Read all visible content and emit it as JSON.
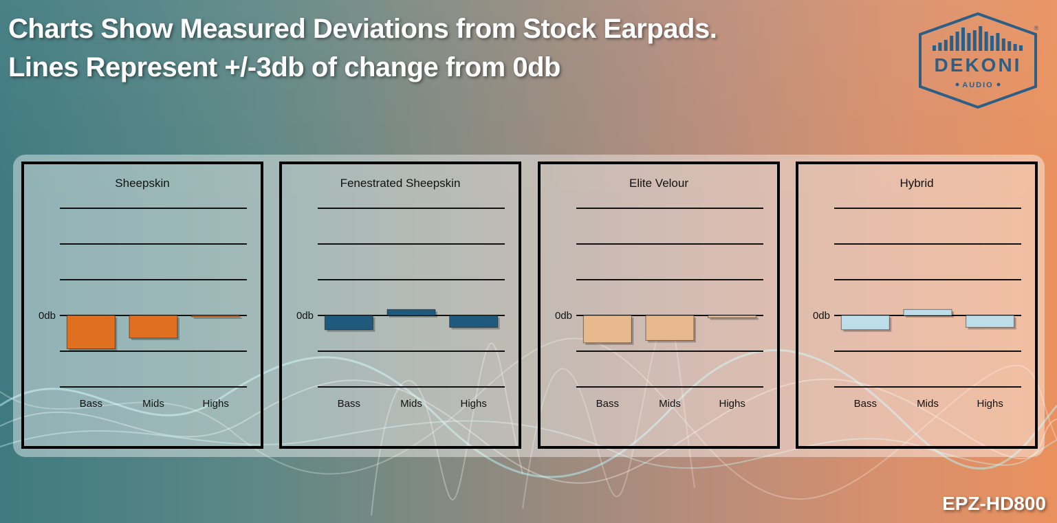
{
  "headline": {
    "line1": "Charts Show Measured Deviations from Stock Earpads.",
    "line2": "Lines Represent +/-3db of change from 0db"
  },
  "logo": {
    "name": "DEKONI",
    "sub": "AUDIO",
    "mark": "®",
    "color": "#2c5f86"
  },
  "model": "EPZ-HD800",
  "chart_data": [
    {
      "type": "bar",
      "title": "Sheepskin",
      "categories": [
        "Bass",
        "Mids",
        "Highs"
      ],
      "zero_label": "0db",
      "values": [
        -2.8,
        -1.9,
        -0.1
      ],
      "ylim": [
        -6,
        9
      ],
      "grid_lines": [
        -6,
        -3,
        0,
        3,
        6,
        9
      ],
      "color": "#e07020"
    },
    {
      "type": "bar",
      "title": "Fenestrated Sheepskin",
      "categories": [
        "Bass",
        "Mids",
        "Highs"
      ],
      "zero_label": "0db",
      "values": [
        -1.2,
        0.5,
        -1.0
      ],
      "ylim": [
        -6,
        9
      ],
      "grid_lines": [
        -6,
        -3,
        0,
        3,
        6,
        9
      ],
      "color": "#1f5a7d"
    },
    {
      "type": "bar",
      "title": "Elite Velour",
      "categories": [
        "Bass",
        "Mids",
        "Highs"
      ],
      "zero_label": "0db",
      "values": [
        -2.3,
        -2.1,
        -0.2
      ],
      "ylim": [
        -6,
        9
      ],
      "grid_lines": [
        -6,
        -3,
        0,
        3,
        6,
        9
      ],
      "color": "#e8b98c"
    },
    {
      "type": "bar",
      "title": "Hybrid",
      "categories": [
        "Bass",
        "Mids",
        "Highs"
      ],
      "zero_label": "0db",
      "values": [
        -1.2,
        0.5,
        -1.0
      ],
      "ylim": [
        -6,
        9
      ],
      "grid_lines": [
        -6,
        -3,
        0,
        3,
        6,
        9
      ],
      "color": "#bcdde9"
    }
  ]
}
